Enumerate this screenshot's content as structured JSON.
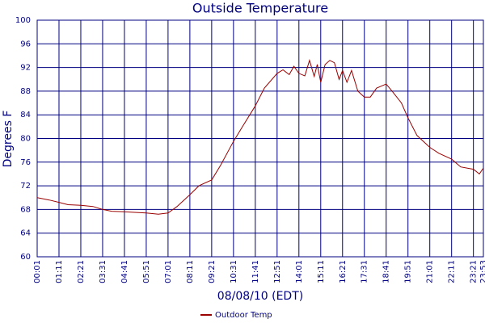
{
  "chart_data": {
    "type": "line",
    "title": "Outside Temperature",
    "xlabel": "08/08/10 (EDT)",
    "ylabel": "Degrees F",
    "xlim": [
      "00:01",
      "23:53"
    ],
    "xticks": [
      "00:01",
      "01:11",
      "02:21",
      "03:31",
      "04:41",
      "05:51",
      "07:01",
      "08:11",
      "09:21",
      "10:31",
      "11:41",
      "12:51",
      "14:01",
      "15:11",
      "16:21",
      "17:31",
      "18:41",
      "19:51",
      "21:01",
      "22:11",
      "23:21",
      "23:53"
    ],
    "ylim": [
      60,
      100
    ],
    "yticks": [
      60,
      64,
      68,
      72,
      76,
      80,
      84,
      88,
      92,
      96,
      100
    ],
    "grid": true,
    "x": [
      "00:01",
      "00:40",
      "01:11",
      "01:40",
      "02:21",
      "03:00",
      "03:31",
      "04:00",
      "04:41",
      "05:20",
      "05:51",
      "06:30",
      "07:01",
      "07:30",
      "08:11",
      "08:40",
      "09:21",
      "09:50",
      "10:31",
      "11:00",
      "11:41",
      "12:10",
      "12:51",
      "13:10",
      "13:30",
      "13:45",
      "14:01",
      "14:20",
      "14:35",
      "14:50",
      "15:00",
      "15:11",
      "15:25",
      "15:40",
      "15:55",
      "16:10",
      "16:21",
      "16:35",
      "16:50",
      "17:10",
      "17:31",
      "17:50",
      "18:10",
      "18:41",
      "19:00",
      "19:30",
      "19:51",
      "20:20",
      "21:01",
      "21:30",
      "22:11",
      "22:40",
      "23:21",
      "23:40",
      "23:53"
    ],
    "series": [
      {
        "name": "Outdoor Temp",
        "color": "#990000",
        "values": [
          70.0,
          69.6,
          69.2,
          68.8,
          68.7,
          68.5,
          68.0,
          67.7,
          67.6,
          67.5,
          67.4,
          67.2,
          67.4,
          68.5,
          70.5,
          72.0,
          73.0,
          75.5,
          79.5,
          82.0,
          85.5,
          88.5,
          91.0,
          91.6,
          90.8,
          92.2,
          91.0,
          90.6,
          93.2,
          90.5,
          92.5,
          89.5,
          92.5,
          93.2,
          92.8,
          90.0,
          91.5,
          89.5,
          91.5,
          88.0,
          87.0,
          87.0,
          88.5,
          89.2,
          88.0,
          86.0,
          83.5,
          80.5,
          78.5,
          77.5,
          76.5,
          75.2,
          74.8,
          74.0,
          75.0
        ]
      }
    ]
  }
}
